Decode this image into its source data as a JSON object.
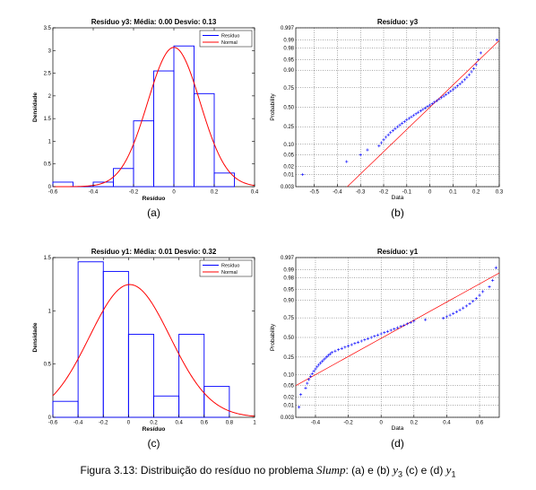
{
  "chart_data": [
    {
      "type": "histogram",
      "title": "Resíduo y3: Média:   0.00 Desvio:   0.13",
      "xlabel": "Resíduo",
      "ylabel": "Densidade",
      "xlim": [
        -0.6,
        0.4
      ],
      "ylim": [
        0,
        3.5
      ],
      "xticks": [
        "-0.6",
        "-0.4",
        "-0.2",
        "0",
        "0.2",
        "0.4"
      ],
      "yticks": [
        "0",
        "0.5",
        "1",
        "1.5",
        "2",
        "2.5",
        "3",
        "3.5"
      ],
      "bin_edges": [
        -0.6,
        -0.5,
        -0.4,
        -0.3,
        -0.2,
        -0.1,
        0.0,
        0.1,
        0.2,
        0.3
      ],
      "values": [
        0.1,
        0.0,
        0.1,
        0.4,
        1.45,
        2.55,
        3.1,
        2.05,
        0.3
      ],
      "normal": {
        "mean": 0.0,
        "std": 0.13
      },
      "series": [
        {
          "name": "Resíduo",
          "color": "#0000ff"
        },
        {
          "name": "Normal",
          "color": "#ff0000"
        }
      ],
      "legend": "top-right",
      "sublabel": "(a)"
    },
    {
      "type": "scatter",
      "title": "Resíduo: y3",
      "xlabel": "Data",
      "ylabel": "Probability",
      "xlim": [
        -0.58,
        0.3
      ],
      "xticks": [
        "-0.5",
        "-0.4",
        "-0.3",
        "-0.2",
        "-0.1",
        "0",
        "0.1",
        "0.2",
        "0.3"
      ],
      "xtick_values": [
        -0.5,
        -0.4,
        -0.3,
        -0.2,
        -0.1,
        0,
        0.1,
        0.2,
        0.3
      ],
      "yticks": [
        "0.003",
        "0.01",
        "0.02",
        "0.05",
        "0.10",
        "0.25",
        "0.50",
        "0.75",
        "0.90",
        "0.95",
        "0.98",
        "0.99",
        "0.997"
      ],
      "ytick_values": [
        0.003,
        0.01,
        0.02,
        0.05,
        0.1,
        0.25,
        0.5,
        0.75,
        0.9,
        0.95,
        0.98,
        0.99,
        0.997
      ],
      "y_scale": "normal-probability",
      "n": 103,
      "x": [
        -0.55,
        -0.36,
        -0.3,
        -0.27,
        -0.22,
        -0.21,
        -0.2,
        -0.19,
        -0.18,
        -0.17,
        -0.16,
        -0.15,
        -0.14,
        -0.13,
        -0.12,
        -0.11,
        -0.1,
        -0.09,
        -0.08,
        -0.07,
        -0.06,
        -0.05,
        -0.04,
        -0.03,
        -0.02,
        -0.01,
        0.0,
        0.01,
        0.02,
        0.03,
        0.04,
        0.05,
        0.06,
        0.07,
        0.08,
        0.09,
        0.1,
        0.11,
        0.12,
        0.13,
        0.14,
        0.15,
        0.16,
        0.17,
        0.18,
        0.19,
        0.2,
        0.21,
        0.22,
        0.29
      ],
      "fit": {
        "mean": 0.0,
        "std": 0.13
      },
      "point_color": "#0000ff",
      "line_color": "#ff0000",
      "grid": true,
      "sublabel": "(b)"
    },
    {
      "type": "histogram",
      "title": "Resíduo y1: Média:   0.01 Desvio:   0.32",
      "xlabel": "Resíduo",
      "ylabel": "Densidade",
      "xlim": [
        -0.6,
        1.0
      ],
      "ylim": [
        0,
        1.5
      ],
      "xticks": [
        "-0.6",
        "-0.4",
        "-0.2",
        "0",
        "0.2",
        "0.4",
        "0.6",
        "0.8",
        "1"
      ],
      "yticks": [
        "0",
        "0.5",
        "1",
        "1.5"
      ],
      "bin_edges": [
        -0.6,
        -0.4,
        -0.2,
        0.0,
        0.2,
        0.4,
        0.6,
        0.8
      ],
      "values": [
        0.15,
        1.46,
        1.37,
        0.78,
        0.2,
        0.78,
        0.29
      ],
      "normal": {
        "mean": 0.01,
        "std": 0.32
      },
      "series": [
        {
          "name": "Resíduo",
          "color": "#0000ff"
        },
        {
          "name": "Normal",
          "color": "#ff0000"
        }
      ],
      "legend": "top-right",
      "sublabel": "(c)"
    },
    {
      "type": "scatter",
      "title": "Resíduo: y1",
      "xlabel": "Data",
      "ylabel": "Probability",
      "xlim": [
        -0.52,
        0.72
      ],
      "xticks": [
        "-0.4",
        "-0.2",
        "0",
        "0.2",
        "0.4",
        "0.6"
      ],
      "xtick_values": [
        -0.4,
        -0.2,
        0,
        0.2,
        0.4,
        0.6
      ],
      "yticks": [
        "0.003",
        "0.01",
        "0.02",
        "0.05",
        "0.10",
        "0.25",
        "0.50",
        "0.75",
        "0.90",
        "0.95",
        "0.98",
        "0.99",
        "0.997"
      ],
      "ytick_values": [
        0.003,
        0.01,
        0.02,
        0.05,
        0.1,
        0.25,
        0.5,
        0.75,
        0.9,
        0.95,
        0.98,
        0.99,
        0.997
      ],
      "y_scale": "normal-probability",
      "n": 103,
      "x": [
        -0.5,
        -0.49,
        -0.46,
        -0.45,
        -0.44,
        -0.43,
        -0.42,
        -0.41,
        -0.4,
        -0.39,
        -0.38,
        -0.37,
        -0.36,
        -0.35,
        -0.34,
        -0.33,
        -0.32,
        -0.31,
        -0.3,
        -0.28,
        -0.26,
        -0.24,
        -0.22,
        -0.2,
        -0.18,
        -0.16,
        -0.14,
        -0.12,
        -0.1,
        -0.08,
        -0.06,
        -0.04,
        -0.02,
        0.0,
        0.02,
        0.04,
        0.06,
        0.08,
        0.1,
        0.12,
        0.14,
        0.16,
        0.18,
        0.2,
        0.27,
        0.38,
        0.4,
        0.42,
        0.44,
        0.46,
        0.48,
        0.5,
        0.52,
        0.54,
        0.56,
        0.58,
        0.6,
        0.62,
        0.66,
        0.68,
        0.7
      ],
      "fit": {
        "mean": 0.01,
        "std": 0.32
      },
      "point_color": "#0000ff",
      "line_color": "#ff0000",
      "grid": true,
      "sublabel": "(d)"
    }
  ],
  "caption": {
    "prefix": "Figura 3.13: Distribuição do resíduo no problema ",
    "problem": "Slump",
    "middle": ": (a) e (b) ",
    "y3": "y",
    "y3_sub": "3",
    "between": " (c) e (d) ",
    "y1": "y",
    "y1_sub": "1"
  }
}
